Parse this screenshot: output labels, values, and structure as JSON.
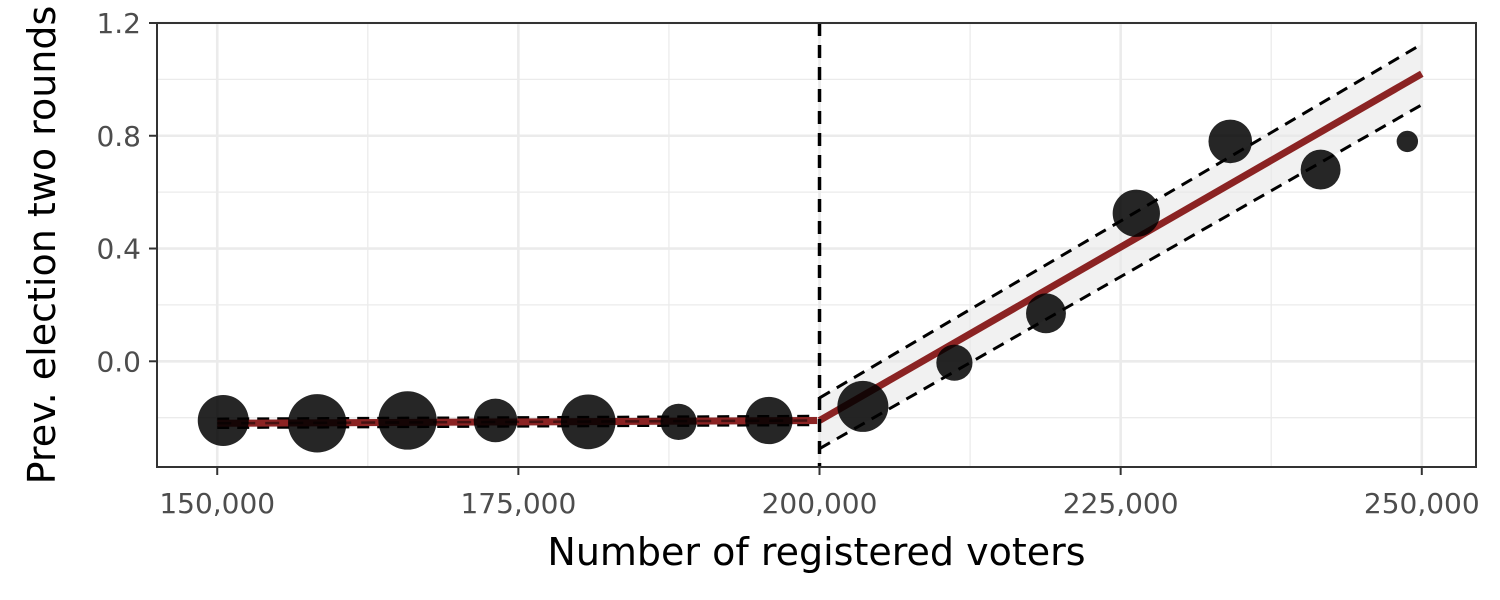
{
  "chart_data": {
    "type": "scatter",
    "xlabel": "Number of registered voters",
    "ylabel": "Prev. election two rounds",
    "xlim": [
      145000,
      254500
    ],
    "ylim": [
      -0.375,
      1.2
    ],
    "x_ticks": [
      150000,
      175000,
      200000,
      225000,
      250000
    ],
    "x_tick_labels": [
      "150,000",
      "175,000",
      "200,000",
      "225,000",
      "250,000"
    ],
    "y_ticks": [
      0.0,
      0.4,
      0.8,
      1.2
    ],
    "y_tick_labels": [
      "0.0",
      "0.4",
      "0.8",
      "1.2"
    ],
    "grid": true,
    "cutoff": 200000,
    "points": [
      {
        "x": 150500,
        "y": -0.21,
        "size": 5
      },
      {
        "x": 158300,
        "y": -0.22,
        "size": 6
      },
      {
        "x": 165800,
        "y": -0.21,
        "size": 6
      },
      {
        "x": 173100,
        "y": -0.21,
        "size": 4
      },
      {
        "x": 180800,
        "y": -0.215,
        "size": 5.5
      },
      {
        "x": 188300,
        "y": -0.215,
        "size": 3
      },
      {
        "x": 195800,
        "y": -0.21,
        "size": 4.5
      },
      {
        "x": 203600,
        "y": -0.16,
        "size": 5
      },
      {
        "x": 211200,
        "y": -0.005,
        "size": 3
      },
      {
        "x": 218800,
        "y": 0.17,
        "size": 3.5
      },
      {
        "x": 226300,
        "y": 0.525,
        "size": 4.5
      },
      {
        "x": 234100,
        "y": 0.78,
        "size": 4
      },
      {
        "x": 241600,
        "y": 0.68,
        "size": 3.5
      },
      {
        "x": 248800,
        "y": 0.78,
        "size": 1
      }
    ],
    "fit_left": {
      "x": [
        150000,
        199800
      ],
      "y": [
        -0.22,
        -0.21
      ],
      "lower": [
        -0.235,
        -0.225
      ],
      "upper": [
        -0.205,
        -0.195
      ]
    },
    "fit_right": {
      "x": [
        200000,
        250000
      ],
      "y": [
        -0.21,
        1.02
      ],
      "lower": [
        -0.31,
        0.91
      ],
      "upper": [
        -0.13,
        1.125
      ]
    },
    "colors": {
      "fit": "#8b2323",
      "points": "#000000",
      "ribbon": "#e8e8e8",
      "grid": "#ebebeb"
    }
  }
}
